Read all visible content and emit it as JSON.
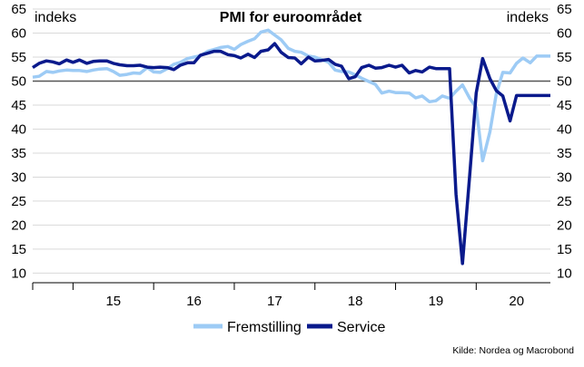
{
  "chart_data": {
    "type": "line",
    "title": "PMI for euroområdet",
    "ylabel_left": "indeks",
    "ylabel_right": "indeks",
    "source": "Kilde: Nordea og Macrobond",
    "ylim": [
      8,
      65
    ],
    "y_ticks": [
      10,
      15,
      20,
      25,
      30,
      35,
      40,
      45,
      50,
      55,
      60,
      65
    ],
    "reference_line": 50,
    "grid": true,
    "legend_position": "bottom",
    "x_start_year": 2014.5,
    "x_end_year": 2020.92,
    "x_ticks": [
      {
        "label": "15",
        "value": 2015.5
      },
      {
        "label": "16",
        "value": 2016.5
      },
      {
        "label": "17",
        "value": 2017.5
      },
      {
        "label": "18",
        "value": 2018.5
      },
      {
        "label": "19",
        "value": 2019.5
      },
      {
        "label": "20",
        "value": 2020.5
      }
    ],
    "x_year_boundaries": [
      2015,
      2016,
      2017,
      2018,
      2019,
      2020
    ],
    "series": [
      {
        "name": "Fremstilling",
        "color": "#9dcbf5",
        "x": [
          2014.5,
          2014.58,
          2014.67,
          2014.75,
          2014.83,
          2014.92,
          2015.0,
          2015.08,
          2015.17,
          2015.25,
          2015.33,
          2015.42,
          2015.5,
          2015.58,
          2015.67,
          2015.75,
          2015.83,
          2015.92,
          2016.0,
          2016.08,
          2016.17,
          2016.25,
          2016.33,
          2016.42,
          2016.5,
          2016.58,
          2016.67,
          2016.75,
          2016.83,
          2016.92,
          2017.0,
          2017.08,
          2017.17,
          2017.25,
          2017.33,
          2017.42,
          2017.5,
          2017.58,
          2017.67,
          2017.75,
          2017.83,
          2017.92,
          2018.0,
          2018.08,
          2018.17,
          2018.25,
          2018.33,
          2018.42,
          2018.5,
          2018.58,
          2018.67,
          2018.75,
          2018.83,
          2018.92,
          2019.0,
          2019.08,
          2019.17,
          2019.25,
          2019.33,
          2019.42,
          2019.5,
          2019.58,
          2019.67,
          2019.75,
          2019.83,
          2019.92,
          2020.0,
          2020.08,
          2020.17,
          2020.25,
          2020.33,
          2020.42,
          2020.5,
          2020.58,
          2020.67,
          2020.75,
          2020.83,
          2020.92
        ],
        "values": [
          50.8,
          51.0,
          52.0,
          51.8,
          52.1,
          52.3,
          52.2,
          52.2,
          52.0,
          52.3,
          52.5,
          52.6,
          52.0,
          51.2,
          51.4,
          51.7,
          51.6,
          52.8,
          51.9,
          51.8,
          52.6,
          53.5,
          53.9,
          54.7,
          55.0,
          55.3,
          56.2,
          56.6,
          57.0,
          57.2,
          56.6,
          57.6,
          58.3,
          58.8,
          60.2,
          60.6,
          59.6,
          58.6,
          56.8,
          56.2,
          56.0,
          55.2,
          55.0,
          54.5,
          53.9,
          52.3,
          52.0,
          51.9,
          51.3,
          50.6,
          49.9,
          49.3,
          47.5,
          47.9,
          47.6,
          47.6,
          47.5,
          46.5,
          46.9,
          45.7,
          45.9,
          46.9,
          46.4,
          47.9,
          49.2,
          46.4,
          44.5,
          33.4,
          39.4,
          47.4,
          51.8,
          51.7,
          53.7,
          54.8,
          53.8,
          55.2,
          55.2,
          55.2
        ]
      },
      {
        "name": "Service",
        "color": "#0a1a8c",
        "x": [
          2014.5,
          2014.58,
          2014.67,
          2014.75,
          2014.83,
          2014.92,
          2015.0,
          2015.08,
          2015.17,
          2015.25,
          2015.33,
          2015.42,
          2015.5,
          2015.58,
          2015.67,
          2015.75,
          2015.83,
          2015.92,
          2016.0,
          2016.08,
          2016.17,
          2016.25,
          2016.33,
          2016.42,
          2016.5,
          2016.58,
          2016.67,
          2016.75,
          2016.83,
          2016.92,
          2017.0,
          2017.08,
          2017.17,
          2017.25,
          2017.33,
          2017.42,
          2017.5,
          2017.58,
          2017.67,
          2017.75,
          2017.83,
          2017.92,
          2018.0,
          2018.08,
          2018.17,
          2018.25,
          2018.33,
          2018.42,
          2018.5,
          2018.58,
          2018.67,
          2018.75,
          2018.83,
          2018.92,
          2019.0,
          2019.08,
          2019.17,
          2019.25,
          2019.33,
          2019.42,
          2019.5,
          2019.58,
          2019.67,
          2019.75,
          2019.83,
          2019.92,
          2020.0,
          2020.08,
          2020.17,
          2020.25,
          2020.33,
          2020.42,
          2020.5,
          2020.58,
          2020.67,
          2020.75,
          2020.83,
          2020.92
        ],
        "values": [
          52.8,
          53.7,
          54.2,
          54.0,
          53.6,
          54.4,
          53.9,
          54.4,
          53.7,
          54.1,
          54.2,
          54.2,
          53.7,
          53.4,
          53.2,
          53.2,
          53.3,
          52.9,
          52.8,
          52.9,
          52.8,
          52.4,
          53.3,
          53.8,
          53.8,
          55.4,
          55.8,
          56.2,
          56.2,
          55.5,
          55.3,
          54.8,
          55.6,
          54.9,
          56.2,
          56.5,
          57.8,
          56.0,
          54.9,
          54.8,
          53.6,
          55.0,
          54.2,
          54.3,
          54.5,
          53.5,
          53.1,
          50.5,
          50.9,
          52.8,
          53.3,
          52.7,
          52.8,
          53.3,
          52.9,
          53.3,
          51.7,
          52.2,
          51.9,
          52.9,
          52.6,
          52.6,
          52.6,
          26.4,
          12.0,
          30.5,
          47.5,
          54.7,
          50.5,
          48.0,
          46.9,
          41.7,
          47.0,
          47.0,
          47.0,
          47.0,
          47.0,
          47.0
        ]
      }
    ]
  }
}
